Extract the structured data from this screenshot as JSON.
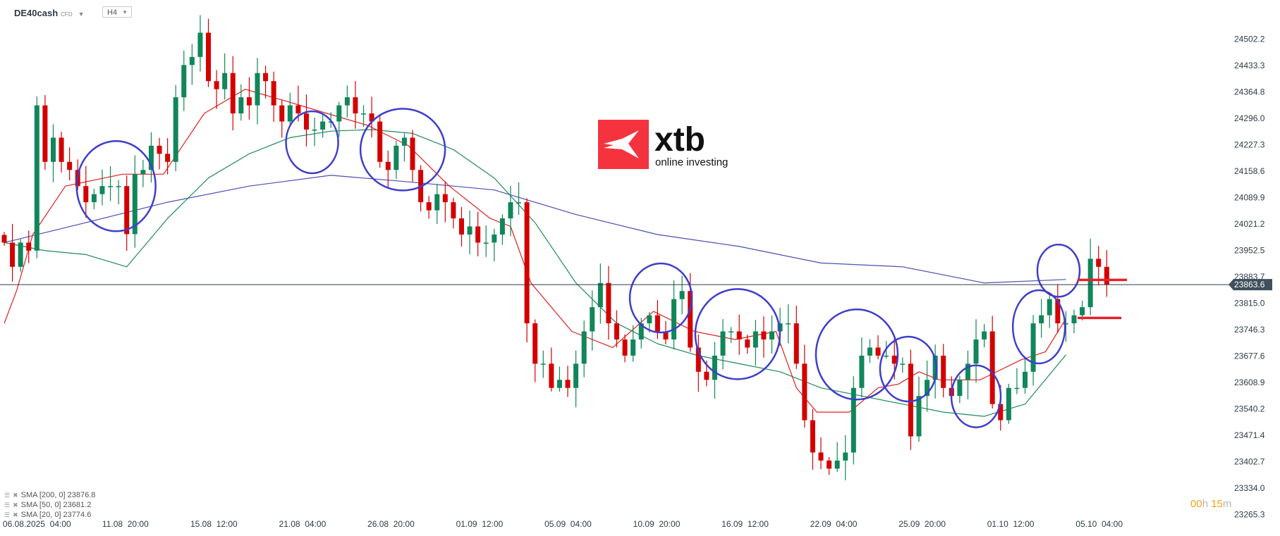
{
  "header": {
    "symbol": "DE40cash",
    "symbol_type": "CFD",
    "timeframe": "H4"
  },
  "logo": {
    "brand": "xtb",
    "tagline": "online investing",
    "color": "#f5333f"
  },
  "legend": [
    {
      "label": "SMA [200,  0] 23876.8",
      "color": "#4a4fb0"
    },
    {
      "label": "SMA [50,  0] 23681.2",
      "color": "#1f8a5c"
    },
    {
      "label": "SMA [20,  0] 23774.6",
      "color": "#e02020"
    }
  ],
  "countdown": {
    "hours": "00",
    "h": "h",
    "minutes": "15",
    "m": "m"
  },
  "current_price": "23863.6",
  "chart_data": {
    "type": "candlestick",
    "timeframe": "H4",
    "up_color": "#10865a",
    "down_color": "#d40000",
    "y_ticks": [
      "24502.2",
      "24433.3",
      "24364.8",
      "24296.0",
      "24227.3",
      "24158.6",
      "24089.9",
      "24021.2",
      "23952.5",
      "23883.7",
      "23815.0",
      "23746.3",
      "23677.6",
      "23608.9",
      "23540.2",
      "23471.4",
      "23402.7",
      "23334.0",
      "23265.3"
    ],
    "ylim": [
      23265.3,
      24502.2
    ],
    "x_ticks": [
      "06.08.2025  04:00",
      "11.08  20:00",
      "15.08  12:00",
      "21.08  04:00",
      "26.08  20:00",
      "01.09  12:00",
      "05.09  04:00",
      "10.09  20:00",
      "16.09  12:00",
      "22.09  04:00",
      "25.09  20:00",
      "01.10  12:00",
      "05.10  04:00"
    ],
    "closes": [
      23973,
      23910,
      23973,
      23952,
      24330,
      24183,
      24246,
      24183,
      24162,
      24120,
      24078,
      24099,
      24120,
      24120,
      24120,
      23995,
      24151,
      24162,
      24225,
      24204,
      24183,
      24351,
      24435,
      24456,
      24519,
      24393,
      24372,
      24414,
      24309,
      24351,
      24330,
      24414,
      24393,
      24330,
      24288,
      24330,
      24309,
      24267,
      24267,
      24288,
      24288,
      24330,
      24351,
      24309,
      24309,
      24288,
      24183,
      24162,
      24225,
      24246,
      24162,
      24078,
      24057,
      24099,
      24078,
      24036,
      23994,
      24015,
      23973,
      23973,
      23994,
      24036,
      24078,
      24078,
      23763,
      23658,
      23658,
      23595,
      23616,
      23595,
      23658,
      23742,
      23805,
      23868,
      23763,
      23721,
      23679,
      23721,
      23763,
      23784,
      23742,
      23721,
      23826,
      23847,
      23700,
      23637,
      23616,
      23679,
      23742,
      23742,
      23721,
      23700,
      23742,
      23721,
      23742,
      23763,
      23763,
      23658,
      23511,
      23427,
      23406,
      23385,
      23406,
      23427,
      23595,
      23679,
      23700,
      23679,
      23679,
      23658,
      23658,
      23469,
      23574,
      23616,
      23679,
      23595,
      23574,
      23616,
      23658,
      23721,
      23742,
      23553,
      23511,
      23595,
      23595,
      23637,
      23763,
      23784,
      23826,
      23763,
      23763,
      23784,
      23805,
      23931,
      23910,
      23864
    ],
    "sma200": [
      [
        0,
        23973
      ],
      [
        10,
        24025
      ],
      [
        20,
        24078
      ],
      [
        30,
        24120
      ],
      [
        40,
        24148
      ],
      [
        50,
        24130
      ],
      [
        60,
        24110
      ],
      [
        70,
        24046
      ],
      [
        80,
        23994
      ],
      [
        90,
        23963
      ],
      [
        100,
        23920
      ],
      [
        110,
        23910
      ],
      [
        120,
        23868
      ],
      [
        130,
        23877
      ]
    ],
    "sma50": [
      [
        0,
        23973
      ],
      [
        5,
        23952
      ],
      [
        10,
        23942
      ],
      [
        15,
        23910
      ],
      [
        20,
        24036
      ],
      [
        25,
        24141
      ],
      [
        30,
        24204
      ],
      [
        35,
        24246
      ],
      [
        40,
        24263
      ],
      [
        45,
        24267
      ],
      [
        50,
        24257
      ],
      [
        55,
        24215
      ],
      [
        60,
        24141
      ],
      [
        65,
        24025
      ],
      [
        70,
        23868
      ],
      [
        75,
        23763
      ],
      [
        80,
        23710
      ],
      [
        85,
        23679
      ],
      [
        90,
        23658
      ],
      [
        95,
        23637
      ],
      [
        100,
        23595
      ],
      [
        105,
        23574
      ],
      [
        110,
        23553
      ],
      [
        115,
        23532
      ],
      [
        120,
        23521
      ],
      [
        125,
        23553
      ],
      [
        130,
        23681
      ]
    ],
    "sma20": [
      [
        0,
        23763
      ],
      [
        1.5,
        23847
      ],
      [
        3.5,
        23994
      ],
      [
        7.5,
        24120
      ],
      [
        14.5,
        24151
      ],
      [
        19.5,
        24151
      ],
      [
        24.5,
        24309
      ],
      [
        29.5,
        24372
      ],
      [
        34.5,
        24341
      ],
      [
        39.5,
        24309
      ],
      [
        44.5,
        24278
      ],
      [
        49.5,
        24225
      ],
      [
        54.5,
        24120
      ],
      [
        59.5,
        24036
      ],
      [
        62,
        24015
      ],
      [
        64.5,
        23868
      ],
      [
        69.5,
        23742
      ],
      [
        74.5,
        23700
      ],
      [
        79.5,
        23794
      ],
      [
        84.5,
        23742
      ],
      [
        89.5,
        23721
      ],
      [
        94.5,
        23742
      ],
      [
        97,
        23595
      ],
      [
        99.5,
        23532
      ],
      [
        103.5,
        23532
      ],
      [
        107,
        23595
      ],
      [
        109.5,
        23605
      ],
      [
        112,
        23637
      ],
      [
        114.5,
        23616
      ],
      [
        119.5,
        23616
      ],
      [
        124.5,
        23668
      ],
      [
        127.5,
        23689
      ],
      [
        130,
        23775
      ]
    ],
    "levels": [
      23876,
      23777
    ]
  }
}
